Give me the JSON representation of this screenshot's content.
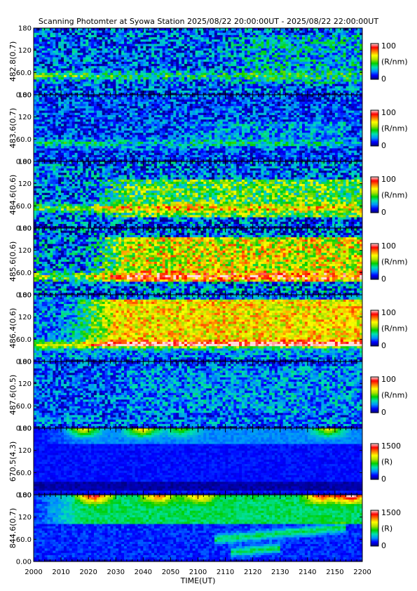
{
  "title": "Scanning Photomter at Syowa Station 2025/08/22 20:00:00UT - 2025/08/22 22:00:00UT",
  "chart_data": {
    "type": "heatmap",
    "xlabel": "TIME(UT)",
    "xlim": [
      0,
      120
    ],
    "x_tick_labels": [
      "2000",
      "2010",
      "2020",
      "2030",
      "2040",
      "2050",
      "2100",
      "2110",
      "2120",
      "2130",
      "2140",
      "2150",
      "2200"
    ],
    "y_tick_labels": [
      "0.00",
      "60.0",
      "120",
      "180"
    ],
    "ylim": [
      0,
      180
    ],
    "colormap": [
      "#00007a",
      "#0000ff",
      "#0090ff",
      "#00e0b0",
      "#00d000",
      "#b0e000",
      "#ffff00",
      "#ff8000",
      "#ff0000",
      "#ffdddd"
    ],
    "panels": [
      {
        "ylabel": "482.8(0.7)",
        "cbar_max": "100",
        "cbar_min": "0",
        "cbar_unit": "(R/nm)",
        "base": 0.18,
        "band_y": 52,
        "band_int": 0.3,
        "band_fade": 0.35,
        "emis_lo": 30,
        "emis_hi": 160,
        "emis_int": 0.1,
        "emis_start": 0.55,
        "emis_end": 1.0,
        "noise": 0.38
      },
      {
        "ylabel": "483.6(0.7)",
        "cbar_max": "100",
        "cbar_min": "0",
        "cbar_unit": "(R/nm)",
        "base": 0.16,
        "band_y": 50,
        "band_int": 0.2,
        "band_fade": 0.35,
        "emis_lo": 40,
        "emis_hi": 110,
        "emis_int": 0.08,
        "emis_start": 0.4,
        "emis_end": 0.95,
        "noise": 0.3
      },
      {
        "ylabel": "484.6(0.6)",
        "cbar_max": "100",
        "cbar_min": "0",
        "cbar_unit": "(R/nm)",
        "base": 0.18,
        "band_y": 55,
        "band_int": 0.32,
        "band_fade": 0.2,
        "emis_lo": 30,
        "emis_hi": 130,
        "emis_int": 0.28,
        "emis_start": 0.15,
        "emis_end": 1.0,
        "noise": 0.42
      },
      {
        "ylabel": "485.6(0.6)",
        "cbar_max": "100",
        "cbar_min": "0",
        "cbar_unit": "(R/nm)",
        "base": 0.2,
        "band_y": 50,
        "band_int": 0.35,
        "band_fade": 0.15,
        "emis_lo": 35,
        "emis_hi": 155,
        "emis_int": 0.42,
        "emis_start": 0.15,
        "emis_end": 1.0,
        "noise": 0.45
      },
      {
        "ylabel": "486.4(0.6)",
        "cbar_max": "100",
        "cbar_min": "0",
        "cbar_unit": "(R/nm)",
        "base": 0.22,
        "band_y": 45,
        "band_int": 0.38,
        "band_fade": 0.0,
        "emis_lo": 40,
        "emis_hi": 170,
        "emis_int": 0.45,
        "emis_start": 0.1,
        "emis_end": 1.0,
        "noise": 0.32
      },
      {
        "ylabel": "487.6(0.5)",
        "cbar_max": "100",
        "cbar_min": "0",
        "cbar_unit": "(R/nm)",
        "base": 0.17,
        "band_y": 20,
        "band_int": 0.05,
        "band_fade": 0.0,
        "emis_lo": 40,
        "emis_hi": 170,
        "emis_int": 0.06,
        "emis_start": 0.2,
        "emis_end": 1.0,
        "noise": 0.3
      },
      {
        "ylabel": "670.5(4.3)",
        "cbar_max": "1500",
        "cbar_min": "0",
        "cbar_unit": "(R)",
        "base": 0.12,
        "band_y": 20,
        "band_int": 0.0,
        "band_fade": 0.0,
        "emis_lo": 140,
        "emis_hi": 180,
        "emis_int": 0.1,
        "emis_start": 0.0,
        "emis_end": 1.0,
        "noise": 0.06,
        "dark_band": [
          15,
          35
        ],
        "top_spots": [
          [
            0.15,
            0.5
          ],
          [
            0.33,
            0.55
          ],
          [
            0.45,
            0.3
          ],
          [
            0.9,
            0.45
          ]
        ]
      },
      {
        "ylabel": "844.6(0.7)",
        "cbar_max": "1500",
        "cbar_min": "0",
        "cbar_unit": "(R)",
        "base": 0.14,
        "band_y": 20,
        "band_int": 0.0,
        "band_fade": 0.0,
        "emis_lo": 100,
        "emis_hi": 180,
        "emis_int": 0.25,
        "emis_start": 0.0,
        "emis_end": 1.0,
        "noise": 0.1,
        "top_spots": [
          [
            0.18,
            0.65
          ],
          [
            0.38,
            0.5
          ],
          [
            0.5,
            0.4
          ],
          [
            0.88,
            0.6
          ],
          [
            0.97,
            0.75
          ]
        ],
        "arcs": [
          [
            0.55,
            0.95,
            60
          ],
          [
            0.6,
            0.75,
            25
          ]
        ]
      }
    ]
  }
}
